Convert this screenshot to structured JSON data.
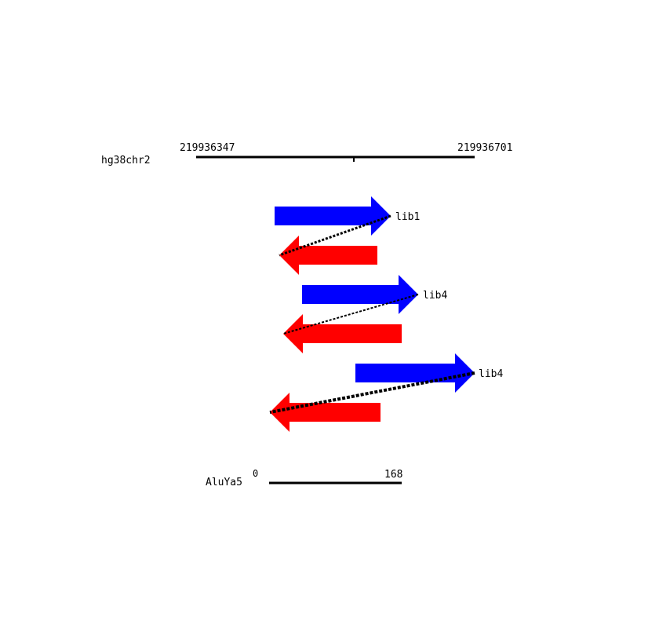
{
  "reference": {
    "name": "hg38chr2",
    "start_label": "219936347",
    "end_label": "219936701",
    "line_color": "#000000"
  },
  "query": {
    "name": "AluYa5",
    "start_label": "0",
    "end_label": "168"
  },
  "alignments": [
    {
      "label": "lib1",
      "forward_color": "#0000ff",
      "reverse_color": "#ff0000"
    },
    {
      "label": "lib4",
      "forward_color": "#0000ff",
      "reverse_color": "#ff0000"
    },
    {
      "label": "lib4",
      "forward_color": "#0000ff",
      "reverse_color": "#ff0000"
    }
  ]
}
